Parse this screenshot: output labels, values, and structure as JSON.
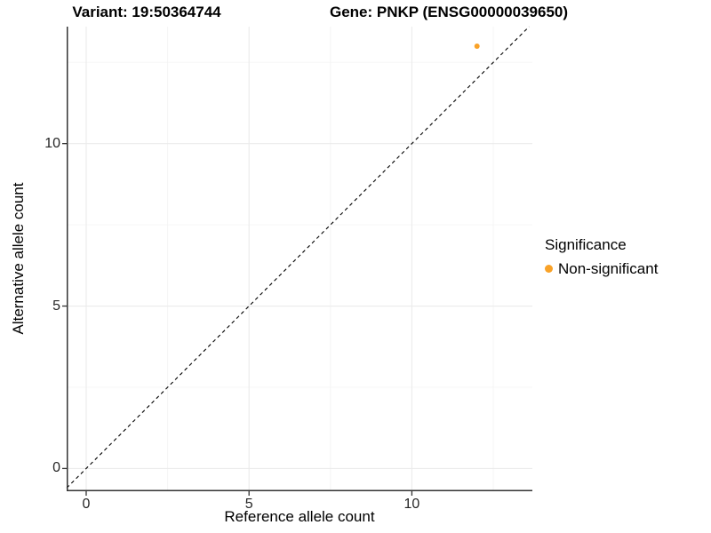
{
  "chart_data": {
    "type": "scatter",
    "title_left": "Variant: 19:50364744",
    "title_right": "Gene: PNKP (ENSG00000039650)",
    "xlabel": "Reference allele count",
    "ylabel": "Alternative allele count",
    "x_ticks": [
      0,
      5,
      10
    ],
    "x_minor_ticks": [
      2.5,
      7.5,
      12.5
    ],
    "y_ticks": [
      0,
      5,
      10
    ],
    "y_minor_ticks": [
      2.5,
      7.5,
      12.5
    ],
    "xlim": [
      -0.6,
      13.7
    ],
    "ylim": [
      -0.7,
      13.6
    ],
    "points": [
      {
        "x": 12,
        "y": 13,
        "series": "Non-significant"
      }
    ],
    "identity_line": {
      "style": "dashed",
      "slope": 1,
      "intercept": 0,
      "from": -0.6,
      "to": 13.6
    },
    "legend": {
      "position": "right",
      "title": "Significance",
      "items": [
        {
          "label": "Non-significant",
          "color": "#F9A228"
        }
      ]
    },
    "grid": true,
    "colors": {
      "grid_major": "#EBEBEB",
      "grid_minor": "#F4F4F4",
      "axis_line": "#333333",
      "tick_mark": "#333333",
      "identity_line": "#000000",
      "background": "#FFFFFF"
    }
  }
}
